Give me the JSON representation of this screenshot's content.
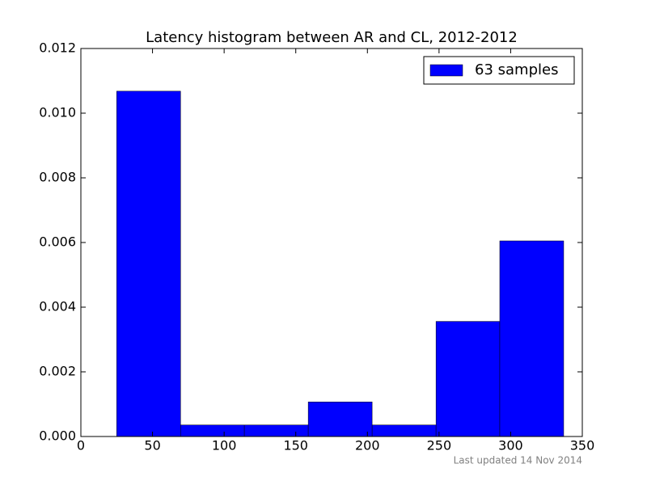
{
  "chart_data": {
    "type": "histogram",
    "title": "Latency histogram between AR and CL, 2012-2012",
    "annotation": "Last updated 14 Nov 2014",
    "bins": [
      25,
      69.6,
      114.1,
      158.7,
      203.3,
      247.9,
      292.4,
      337
    ],
    "series": [
      {
        "name": "63 samples",
        "color": "#0000ff",
        "values": [
          0.01068,
          0.000356,
          0.000356,
          0.00107,
          0.000356,
          0.00356,
          0.00605
        ]
      }
    ],
    "xlim": [
      0,
      350
    ],
    "xticks": [
      0,
      50,
      100,
      150,
      200,
      250,
      300,
      350
    ],
    "ylim": [
      0,
      0.012
    ],
    "yticks": [
      {
        "value": 0,
        "label": "0.000"
      },
      {
        "value": 0.002,
        "label": "0.002"
      },
      {
        "value": 0.004,
        "label": "0.004"
      },
      {
        "value": 0.006,
        "label": "0.006"
      },
      {
        "value": 0.008,
        "label": "0.008"
      },
      {
        "value": 0.01,
        "label": "0.010"
      },
      {
        "value": 0.012,
        "label": "0.012"
      }
    ],
    "legend": "upper right"
  }
}
